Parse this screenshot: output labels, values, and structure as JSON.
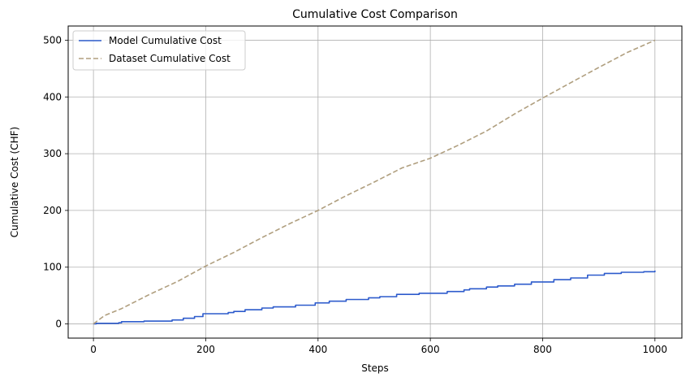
{
  "chart_data": {
    "type": "line",
    "title": "Cumulative Cost Comparison",
    "xlabel": "Steps",
    "ylabel": "Cumulative Cost (CHF)",
    "xlim": [
      -45,
      1048
    ],
    "ylim": [
      -25,
      525
    ],
    "xticks": [
      0,
      200,
      400,
      600,
      800,
      1000
    ],
    "yticks": [
      0,
      100,
      200,
      300,
      400,
      500
    ],
    "grid": true,
    "legend_position": "top-left",
    "series": [
      {
        "name": "Model Cumulative Cost",
        "color": "#2d5bcc",
        "style": "solid",
        "step": true,
        "x": [
          0,
          5,
          45,
          50,
          90,
          140,
          160,
          180,
          195,
          240,
          250,
          270,
          300,
          320,
          360,
          395,
          420,
          450,
          490,
          510,
          540,
          580,
          630,
          660,
          670,
          700,
          720,
          750,
          780,
          820,
          850,
          880,
          910,
          940,
          980,
          1000
        ],
        "y": [
          0,
          1,
          2,
          4,
          5,
          7,
          10,
          13,
          18,
          20,
          22,
          25,
          28,
          30,
          33,
          37,
          40,
          43,
          46,
          48,
          52,
          54,
          57,
          60,
          62,
          65,
          67,
          70,
          74,
          78,
          81,
          86,
          89,
          91,
          92,
          94
        ]
      },
      {
        "name": "Dataset Cumulative Cost",
        "color": "#b09f7f",
        "style": "dashed",
        "step": false,
        "x": [
          0,
          20,
          50,
          100,
          150,
          200,
          250,
          300,
          350,
          400,
          450,
          500,
          550,
          600,
          650,
          700,
          750,
          800,
          850,
          900,
          950,
          1000
        ],
        "y": [
          0,
          15,
          27,
          52,
          75,
          102,
          126,
          152,
          177,
          200,
          226,
          250,
          275,
          292,
          315,
          340,
          370,
          398,
          425,
          452,
          478,
          500
        ]
      }
    ]
  }
}
